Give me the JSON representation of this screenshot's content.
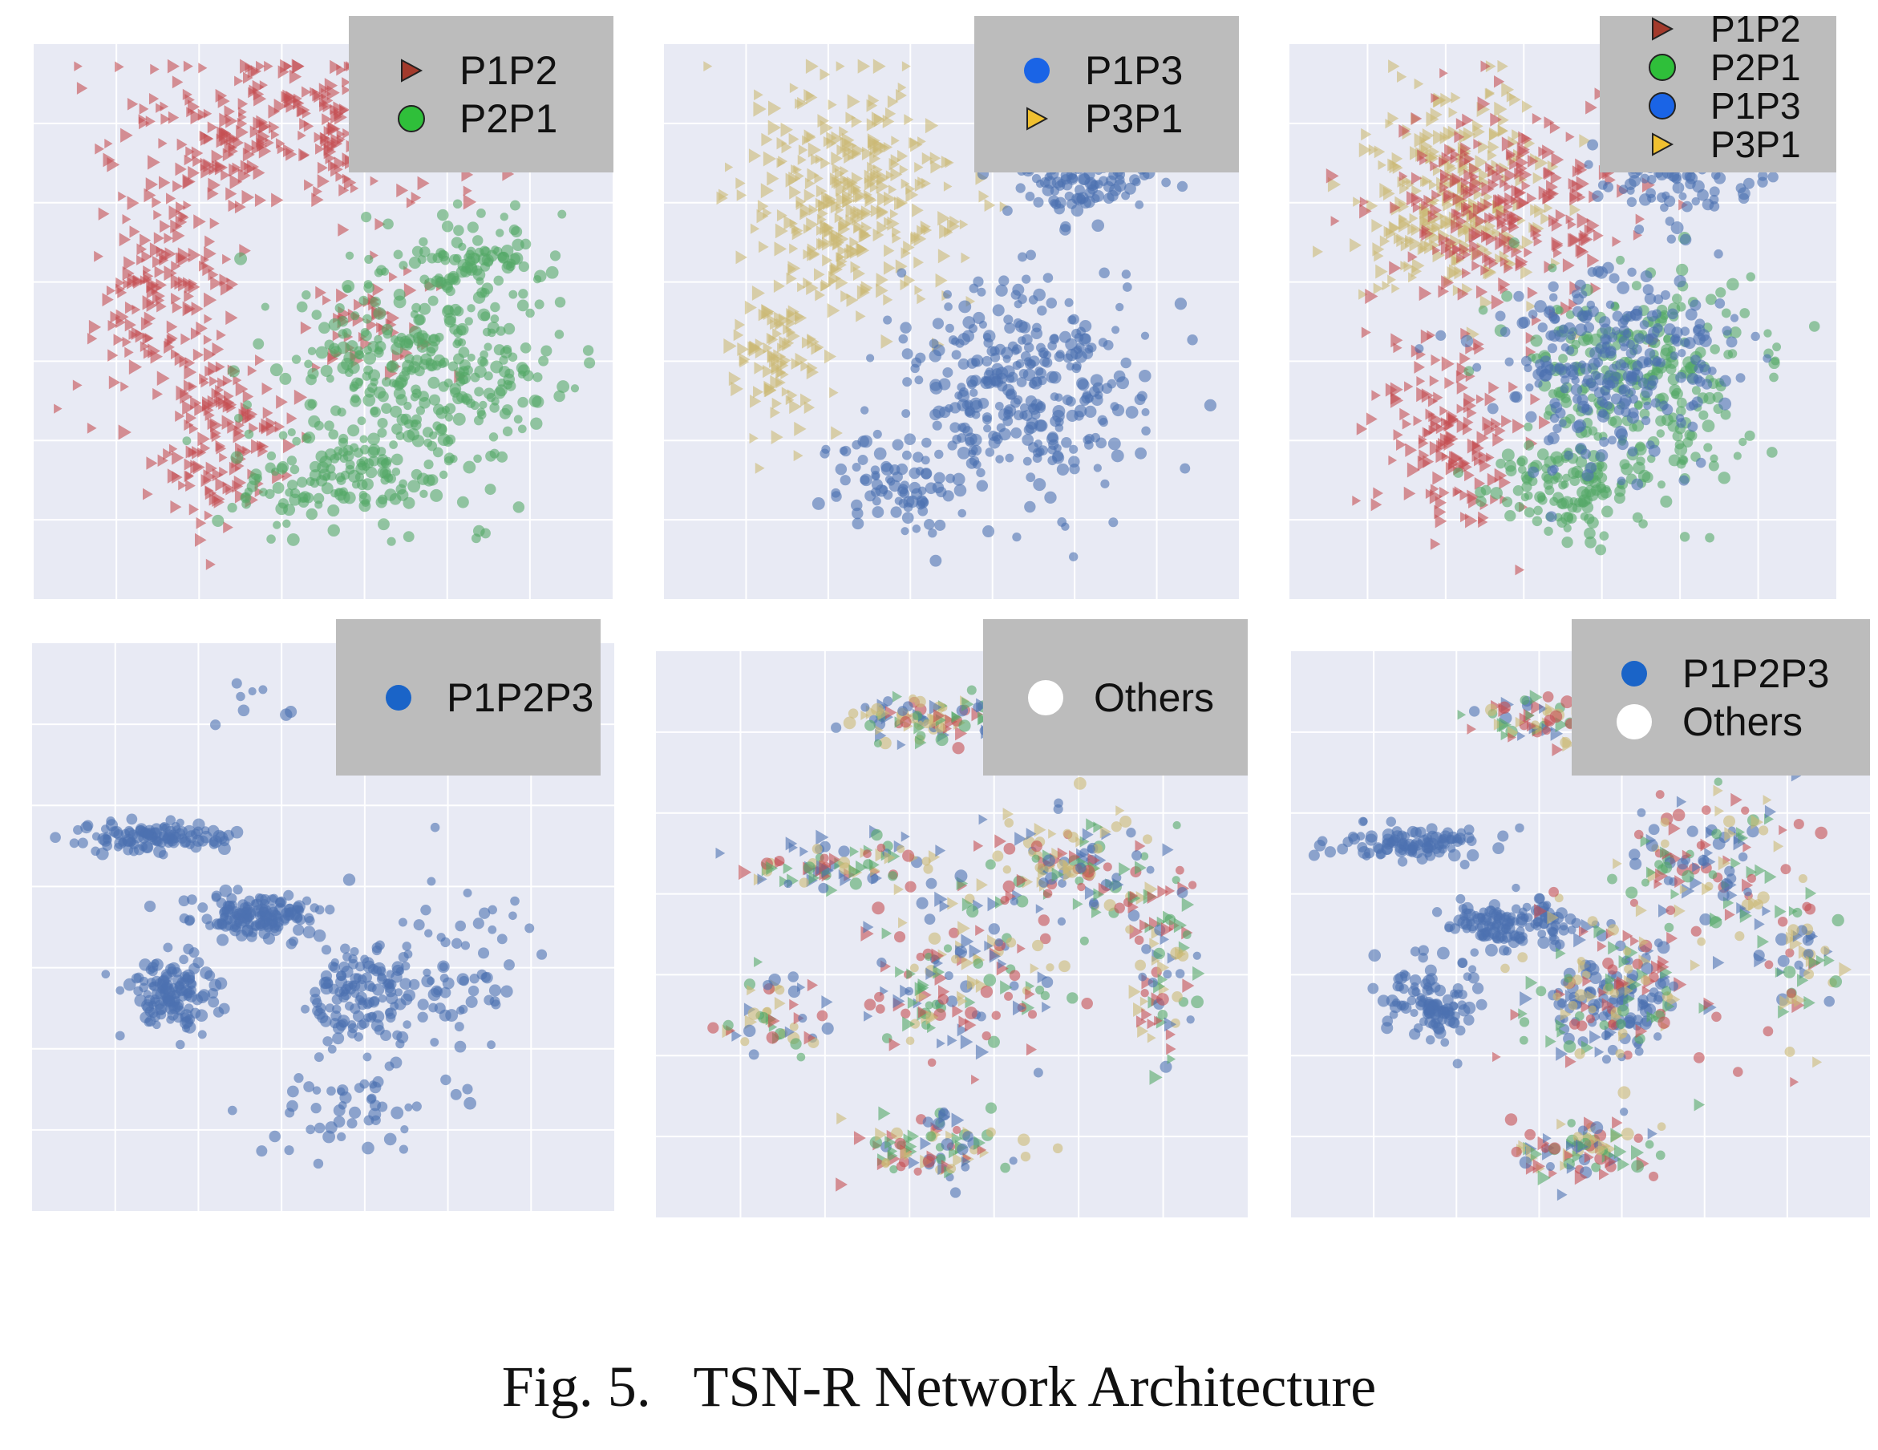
{
  "figure": {
    "caption_label": "Fig. 5.",
    "caption_text": "TSN-R Network Architecture"
  },
  "colors": {
    "P1P2": "#c44e52",
    "P2P1": "#55a868",
    "P1P3": "#4c72b0",
    "P3P1": "#ccb974",
    "P1P2P3": "#4c72b0",
    "plot_bg": "#e8eaf4",
    "legend_bg": "#bcbcbc"
  },
  "chart_data": [
    {
      "type": "scatter",
      "panel": "top-left",
      "legend_placement": "top-right",
      "grid": true,
      "legend": [
        {
          "label": "P1P2",
          "marker": "triangle",
          "color": "#a33a2c"
        },
        {
          "label": "P2P1",
          "marker": "circle",
          "color": "#2fbf3a"
        }
      ],
      "series": [
        {
          "name": "P1P2",
          "clusters": [
            {
              "x": 0.45,
              "y": 0.85,
              "sx": 0.28,
              "sy": 0.13,
              "n": 280
            },
            {
              "x": 0.22,
              "y": 0.55,
              "sx": 0.11,
              "sy": 0.18,
              "n": 160
            },
            {
              "x": 0.33,
              "y": 0.28,
              "sx": 0.1,
              "sy": 0.14,
              "n": 130
            },
            {
              "x": 0.58,
              "y": 0.5,
              "sx": 0.1,
              "sy": 0.1,
              "n": 50
            }
          ]
        },
        {
          "name": "P2P1",
          "clusters": [
            {
              "x": 0.68,
              "y": 0.42,
              "sx": 0.2,
              "sy": 0.17,
              "n": 300
            },
            {
              "x": 0.55,
              "y": 0.22,
              "sx": 0.18,
              "sy": 0.09,
              "n": 150
            },
            {
              "x": 0.78,
              "y": 0.6,
              "sx": 0.12,
              "sy": 0.08,
              "n": 90
            }
          ]
        }
      ]
    },
    {
      "type": "scatter",
      "panel": "top-middle",
      "legend_placement": "top-right",
      "grid": true,
      "legend": [
        {
          "label": "P1P3",
          "marker": "circle",
          "color": "#1a64e6"
        },
        {
          "label": "P3P1",
          "marker": "triangle",
          "color": "#f0c030"
        }
      ],
      "series": [
        {
          "name": "P3P1",
          "clusters": [
            {
              "x": 0.32,
              "y": 0.72,
              "sx": 0.16,
              "sy": 0.18,
              "n": 320
            },
            {
              "x": 0.2,
              "y": 0.42,
              "sx": 0.08,
              "sy": 0.12,
              "n": 90
            }
          ]
        },
        {
          "name": "P1P3",
          "clusters": [
            {
              "x": 0.63,
              "y": 0.38,
              "sx": 0.19,
              "sy": 0.17,
              "n": 330
            },
            {
              "x": 0.73,
              "y": 0.76,
              "sx": 0.12,
              "sy": 0.06,
              "n": 110
            },
            {
              "x": 0.4,
              "y": 0.2,
              "sx": 0.12,
              "sy": 0.08,
              "n": 80
            }
          ]
        }
      ]
    },
    {
      "type": "scatter",
      "panel": "top-right",
      "legend_placement": "top-right",
      "grid": true,
      "legend": [
        {
          "label": "P1P2",
          "marker": "triangle",
          "color": "#a33a2c"
        },
        {
          "label": "P2P1",
          "marker": "circle",
          "color": "#2fbf3a"
        },
        {
          "label": "P1P3",
          "marker": "circle",
          "color": "#1a64e6"
        },
        {
          "label": "P3P1",
          "marker": "triangle",
          "color": "#f0c030"
        }
      ],
      "series": [
        {
          "name": "P3P1",
          "clusters": [
            {
              "x": 0.3,
              "y": 0.72,
              "sx": 0.16,
              "sy": 0.18,
              "n": 260
            }
          ]
        },
        {
          "name": "P1P2",
          "clusters": [
            {
              "x": 0.38,
              "y": 0.7,
              "sx": 0.22,
              "sy": 0.18,
              "n": 240
            },
            {
              "x": 0.3,
              "y": 0.3,
              "sx": 0.12,
              "sy": 0.15,
              "n": 140
            }
          ]
        },
        {
          "name": "P2P1",
          "clusters": [
            {
              "x": 0.64,
              "y": 0.4,
              "sx": 0.2,
              "sy": 0.17,
              "n": 260
            },
            {
              "x": 0.5,
              "y": 0.2,
              "sx": 0.16,
              "sy": 0.08,
              "n": 120
            }
          ]
        },
        {
          "name": "P1P3",
          "clusters": [
            {
              "x": 0.6,
              "y": 0.42,
              "sx": 0.19,
              "sy": 0.16,
              "n": 260
            },
            {
              "x": 0.7,
              "y": 0.76,
              "sx": 0.12,
              "sy": 0.06,
              "n": 90
            }
          ]
        }
      ]
    },
    {
      "type": "scatter",
      "panel": "bottom-left",
      "legend_placement": "top-right",
      "grid": true,
      "legend": [
        {
          "label": "P1P2P3",
          "marker": "circle",
          "color": "#1a64c8"
        }
      ],
      "series": [
        {
          "name": "P1P2P3",
          "clusters": [
            {
              "x": 0.2,
              "y": 0.66,
              "sx": 0.12,
              "sy": 0.025,
              "n": 110
            },
            {
              "x": 0.38,
              "y": 0.52,
              "sx": 0.1,
              "sy": 0.035,
              "n": 150
            },
            {
              "x": 0.24,
              "y": 0.38,
              "sx": 0.07,
              "sy": 0.06,
              "n": 130
            },
            {
              "x": 0.56,
              "y": 0.38,
              "sx": 0.09,
              "sy": 0.08,
              "n": 120
            },
            {
              "x": 0.72,
              "y": 0.42,
              "sx": 0.14,
              "sy": 0.14,
              "n": 70
            },
            {
              "x": 0.55,
              "y": 0.18,
              "sx": 0.14,
              "sy": 0.08,
              "n": 50
            },
            {
              "x": 0.4,
              "y": 0.9,
              "sx": 0.1,
              "sy": 0.05,
              "n": 8
            }
          ]
        }
      ]
    },
    {
      "type": "scatter",
      "panel": "bottom-middle",
      "legend_placement": "top-right",
      "grid": true,
      "legend": [
        {
          "label": "Others",
          "marker": "circle",
          "color": "#ffffff"
        }
      ],
      "series": [
        {
          "name": "Others",
          "mixed": true,
          "clusters": [
            {
              "x": 0.45,
              "y": 0.88,
              "sx": 0.12,
              "sy": 0.04,
              "n": 90
            },
            {
              "x": 0.3,
              "y": 0.62,
              "sx": 0.16,
              "sy": 0.04,
              "n": 90
            },
            {
              "x": 0.7,
              "y": 0.62,
              "sx": 0.14,
              "sy": 0.1,
              "n": 140
            },
            {
              "x": 0.5,
              "y": 0.42,
              "sx": 0.16,
              "sy": 0.14,
              "n": 160
            },
            {
              "x": 0.2,
              "y": 0.35,
              "sx": 0.08,
              "sy": 0.06,
              "n": 50
            },
            {
              "x": 0.48,
              "y": 0.12,
              "sx": 0.12,
              "sy": 0.05,
              "n": 90
            },
            {
              "x": 0.85,
              "y": 0.45,
              "sx": 0.06,
              "sy": 0.15,
              "n": 80
            }
          ]
        }
      ]
    },
    {
      "type": "scatter",
      "panel": "bottom-right",
      "legend_placement": "top-right",
      "grid": true,
      "legend": [
        {
          "label": "P1P2P3",
          "marker": "circle",
          "color": "#1a64c8"
        },
        {
          "label": "Others",
          "marker": "circle",
          "color": "#ffffff"
        }
      ],
      "series": [
        {
          "name": "P1P2P3",
          "clusters": [
            {
              "x": 0.2,
              "y": 0.66,
              "sx": 0.12,
              "sy": 0.025,
              "n": 100
            },
            {
              "x": 0.38,
              "y": 0.52,
              "sx": 0.1,
              "sy": 0.035,
              "n": 130
            },
            {
              "x": 0.24,
              "y": 0.38,
              "sx": 0.07,
              "sy": 0.06,
              "n": 110
            },
            {
              "x": 0.56,
              "y": 0.38,
              "sx": 0.09,
              "sy": 0.08,
              "n": 90
            }
          ]
        },
        {
          "name": "Others",
          "mixed": true,
          "clusters": [
            {
              "x": 0.45,
              "y": 0.88,
              "sx": 0.12,
              "sy": 0.04,
              "n": 80
            },
            {
              "x": 0.72,
              "y": 0.62,
              "sx": 0.14,
              "sy": 0.12,
              "n": 140
            },
            {
              "x": 0.55,
              "y": 0.4,
              "sx": 0.16,
              "sy": 0.14,
              "n": 140
            },
            {
              "x": 0.5,
              "y": 0.12,
              "sx": 0.12,
              "sy": 0.05,
              "n": 90
            },
            {
              "x": 0.88,
              "y": 0.45,
              "sx": 0.06,
              "sy": 0.15,
              "n": 60
            }
          ]
        }
      ]
    }
  ]
}
